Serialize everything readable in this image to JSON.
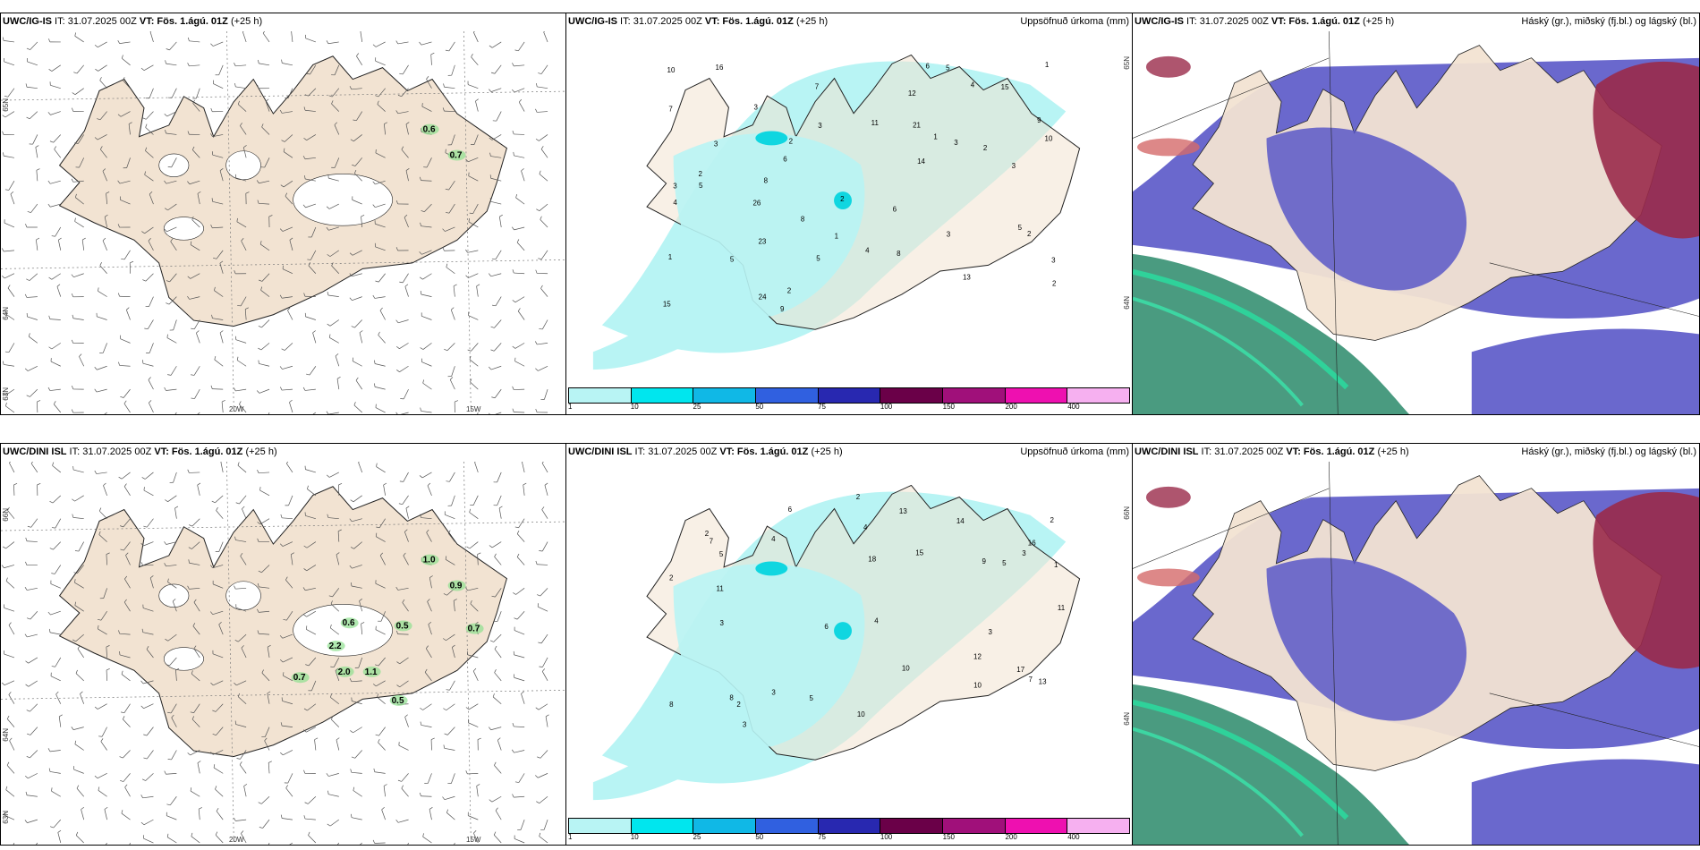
{
  "colors": {
    "land": "#f2e3d2",
    "coast": "#222222",
    "precip_light": "#b8f4f4",
    "cloud_high": "#2a8a6a",
    "cloud_mid": "#5a58c8",
    "cloud_low": "#9a2a4a"
  },
  "top_row": {
    "wind": {
      "title_model": "UWC/IG-IS",
      "title_it": " IT: 31.07.2025 00Z ",
      "title_vt_label": "VT:",
      "title_vt": " Fös. 1.ágú. 01Z",
      "title_lead": " (+25 h)",
      "lat_labels": [
        "65N",
        "64N",
        "63N"
      ],
      "lon_labels": [
        "20W",
        "15W"
      ],
      "labels": [
        "0.6",
        "0.7"
      ]
    },
    "precip": {
      "title_model": "UWC/IG-IS",
      "title_it": " IT: 31.07.2025 00Z ",
      "title_vt_label": "VT:",
      "title_vt": " Fös. 1.ágú. 01Z",
      "title_lead": " (+25 h)",
      "right_label": "Uppsöfnuð úrkoma (mm)",
      "lat_labels": [
        "65N",
        "64N"
      ],
      "numbers": [
        "3",
        "3",
        "2",
        "1",
        "1",
        "4",
        "3",
        "9",
        "6",
        "2",
        "3",
        "5",
        "5",
        "6",
        "8",
        "2",
        "7",
        "11",
        "15",
        "21",
        "24",
        "23",
        "14",
        "15",
        "16",
        "13",
        "6",
        "7",
        "9",
        "10",
        "26",
        "12",
        "8",
        "5",
        "4",
        "3",
        "10",
        "5",
        "5",
        "3",
        "4",
        "8",
        "2",
        "3",
        "1",
        "2",
        "3",
        "2",
        "1",
        "2"
      ]
    },
    "cloud": {
      "title_model": "UWC/IG-IS",
      "title_it": " IT: 31.07.2025 00Z ",
      "title_vt_label": "VT:",
      "title_vt": " Fös. 1.ágú. 01Z",
      "title_lead": " (+25 h)",
      "right_label": "Háský (gr.), miðský (fj.bl.) og lágský (bl.)"
    }
  },
  "bottom_row": {
    "wind": {
      "title_model": "UWC/DINI ISL",
      "title_it": " IT: 31.07.2025 00Z ",
      "title_vt_label": "VT:",
      "title_vt": " Fös. 1.ágú. 01Z",
      "title_lead": " (+25 h)",
      "lat_labels": [
        "66N",
        "64N",
        "63N"
      ],
      "lon_labels": [
        "20W",
        "15W"
      ],
      "labels": [
        "1.0",
        "0.9",
        "0.6",
        "0.5",
        "2.2",
        "2.0",
        "1.1",
        "0.7",
        "0.5",
        "0.7"
      ]
    },
    "precip": {
      "title_model": "UWC/DINI ISL",
      "title_it": " IT: 31.07.2025 00Z ",
      "title_vt_label": "VT:",
      "title_vt": " Fös. 1.ágú. 01Z",
      "title_lead": " (+25 h)",
      "right_label": "Uppsöfnuð úrkoma (mm)",
      "lat_labels": [
        "66N",
        "64N"
      ],
      "numbers": [
        "3",
        "3",
        "2",
        "10",
        "11",
        "8",
        "7",
        "5",
        "18",
        "17",
        "15",
        "12",
        "14",
        "10",
        "11",
        "9",
        "16",
        "13",
        "6",
        "5",
        "4",
        "3",
        "2",
        "8",
        "10",
        "13",
        "4",
        "5",
        "2",
        "3",
        "1",
        "2",
        "7",
        "6",
        "2",
        "4",
        "3"
      ]
    },
    "cloud": {
      "title_model": "UWC/DINI ISL",
      "title_it": " IT: 31.07.2025 00Z ",
      "title_vt_label": "VT:",
      "title_vt": " Fös. 1.ágú. 01Z",
      "title_lead": " (+25 h)",
      "right_label": "Háský (gr.), miðský (fj.bl.) og lágský (bl.)"
    }
  },
  "colorbar": {
    "colors": [
      "#b8f4f4",
      "#00e6ee",
      "#10b8e6",
      "#3060e0",
      "#2828b0",
      "#6a0048",
      "#a0107a",
      "#ee10b0",
      "#f6b0f0"
    ],
    "labels": [
      "1",
      "10",
      "25",
      "50",
      "75",
      "100",
      "150",
      "200",
      "400"
    ]
  }
}
